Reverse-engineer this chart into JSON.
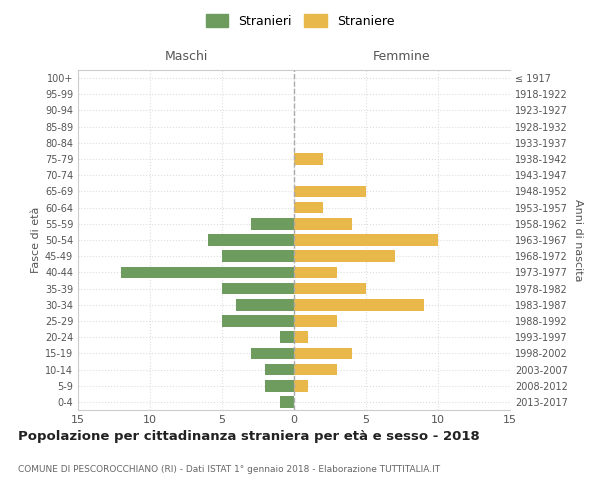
{
  "age_groups": [
    "0-4",
    "5-9",
    "10-14",
    "15-19",
    "20-24",
    "25-29",
    "30-34",
    "35-39",
    "40-44",
    "45-49",
    "50-54",
    "55-59",
    "60-64",
    "65-69",
    "70-74",
    "75-79",
    "80-84",
    "85-89",
    "90-94",
    "95-99",
    "100+"
  ],
  "birth_years": [
    "2013-2017",
    "2008-2012",
    "2003-2007",
    "1998-2002",
    "1993-1997",
    "1988-1992",
    "1983-1987",
    "1978-1982",
    "1973-1977",
    "1968-1972",
    "1963-1967",
    "1958-1962",
    "1953-1957",
    "1948-1952",
    "1943-1947",
    "1938-1942",
    "1933-1937",
    "1928-1932",
    "1923-1927",
    "1918-1922",
    "≤ 1917"
  ],
  "maschi": [
    1,
    2,
    2,
    3,
    1,
    5,
    4,
    5,
    12,
    5,
    6,
    3,
    0,
    0,
    0,
    0,
    0,
    0,
    0,
    0,
    0
  ],
  "femmine": [
    0,
    1,
    3,
    4,
    1,
    3,
    9,
    5,
    3,
    7,
    10,
    4,
    2,
    5,
    0,
    2,
    0,
    0,
    0,
    0,
    0
  ],
  "male_color": "#6e9b5e",
  "female_color": "#e8b84b",
  "title": "Popolazione per cittadinanza straniera per età e sesso - 2018",
  "subtitle": "COMUNE DI PESCOROCCHIANO (RI) - Dati ISTAT 1° gennaio 2018 - Elaborazione TUTTITALIA.IT",
  "legend_male": "Stranieri",
  "legend_female": "Straniere",
  "xlabel_left": "Maschi",
  "xlabel_right": "Femmine",
  "ylabel_left": "Fasce di età",
  "ylabel_right": "Anni di nascita",
  "xlim": 15,
  "background_color": "#ffffff",
  "grid_color": "#dddddd",
  "spine_color": "#cccccc"
}
